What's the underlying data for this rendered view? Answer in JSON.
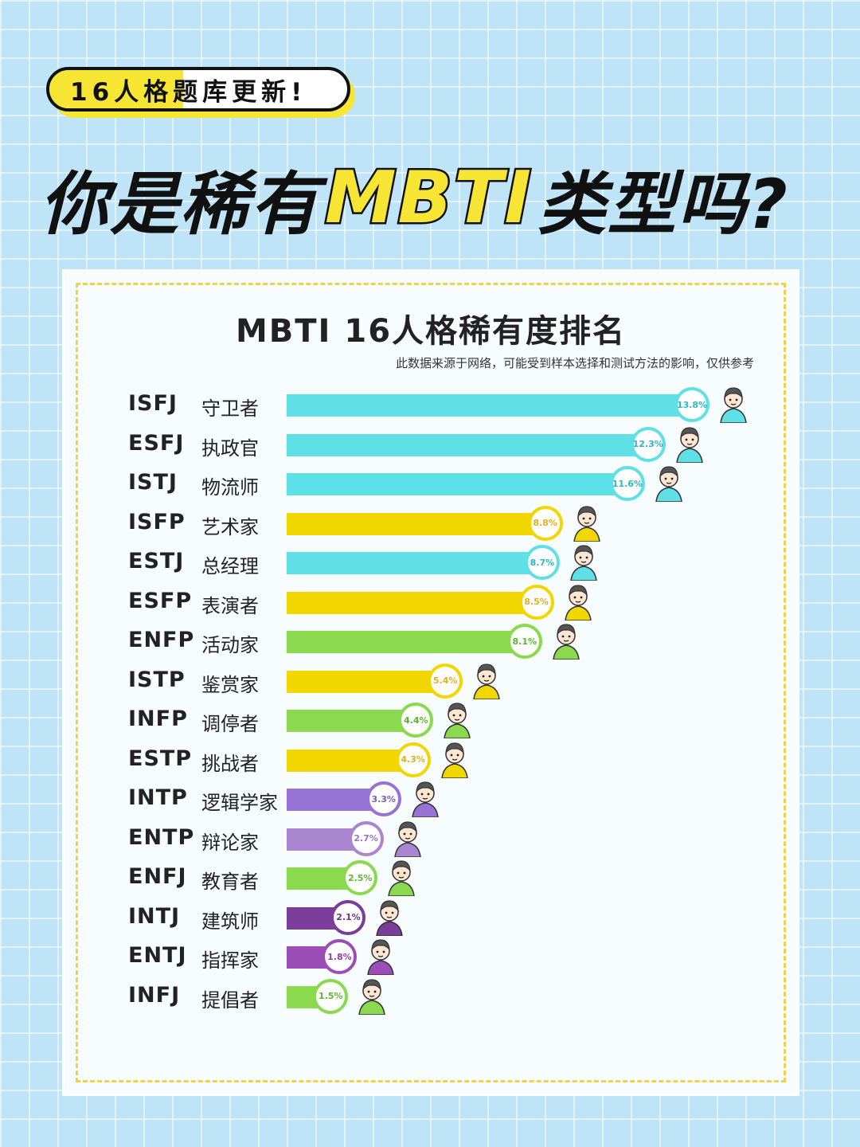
{
  "header": {
    "tag": "16人格题库更新!",
    "headline_pre": "你是稀有",
    "headline_accent": "MBTI",
    "headline_post": "类型吗?"
  },
  "colors": {
    "teal": "#5fe0e6",
    "yellow": "#f2d600",
    "green": "#8ad94e",
    "purple1": "#9673d4",
    "purple2": "#ab86d0",
    "purple3": "#7a3d9a",
    "purple4": "#9b4fb6"
  },
  "chart_data": {
    "type": "bar",
    "orientation": "horizontal",
    "title": "MBTI 16人格稀有度排名",
    "subtitle": "此数据来源于网络，可能受到样本选择和测试方法的影响，仅供参考",
    "categories": [
      "ISFJ",
      "ESFJ",
      "ISTJ",
      "ISFP",
      "ESTJ",
      "ESFP",
      "ENFP",
      "ISTP",
      "INFP",
      "ESTP",
      "INTP",
      "ENTP",
      "ENFJ",
      "INTJ",
      "ENTJ",
      "INFJ"
    ],
    "names": [
      "守卫者",
      "执政官",
      "物流师",
      "艺术家",
      "总经理",
      "表演者",
      "活动家",
      "鉴赏家",
      "调停者",
      "挑战者",
      "逻辑学家",
      "辩论家",
      "教育者",
      "建筑师",
      "指挥家",
      "提倡者"
    ],
    "values": [
      13.8,
      12.3,
      11.6,
      8.8,
      8.7,
      8.5,
      8.1,
      5.4,
      4.4,
      4.3,
      3.3,
      2.7,
      2.5,
      2.1,
      1.8,
      1.5
    ],
    "labels": [
      "13.8%",
      "12.3%",
      "11.6%",
      "8.8%",
      "8.7%",
      "8.5%",
      "8.1%",
      "5.4%",
      "4.4%",
      "4.3%",
      "3.3%",
      "2.7%",
      "2.5%",
      "2.1%",
      "1.8%",
      "1.5%"
    ],
    "bar_colors": [
      "#5fe0e6",
      "#5fe0e6",
      "#5fe0e6",
      "#f2d600",
      "#5fe0e6",
      "#f2d600",
      "#8ad94e",
      "#f2d600",
      "#8ad94e",
      "#f2d600",
      "#9673d4",
      "#ab86d0",
      "#8ad94e",
      "#7a3d9a",
      "#9b4fb6",
      "#8ad94e"
    ],
    "label_colors": [
      "#2bb8c2",
      "#2bb8c2",
      "#2bb8c2",
      "#e0b020",
      "#2bb8c2",
      "#e0b020",
      "#5cb52e",
      "#e0b020",
      "#5cb52e",
      "#e0b020",
      "#7b58c0",
      "#9a74c2",
      "#5cb52e",
      "#6e3190",
      "#8c42a8",
      "#5cb52e"
    ],
    "xlim": [
      0,
      13.8
    ]
  }
}
